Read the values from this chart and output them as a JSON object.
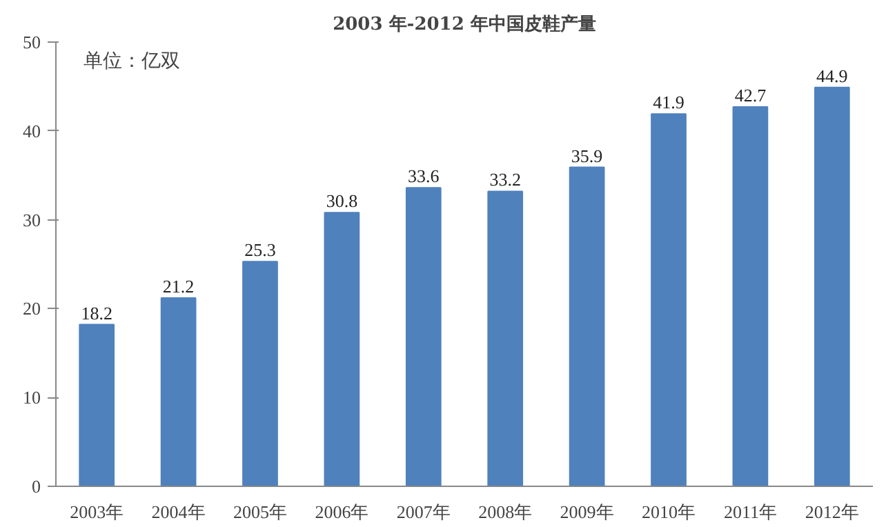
{
  "chart_data": {
    "type": "bar",
    "title": "2003 年-2012 年中国皮鞋产量",
    "categories": [
      "2003年",
      "2004年",
      "2005年",
      "2006年",
      "2007年",
      "2008年",
      "2009年",
      "2010年",
      "2011年",
      "2012年"
    ],
    "values": [
      18.2,
      21.2,
      25.3,
      30.8,
      33.6,
      33.2,
      35.9,
      41.9,
      42.7,
      44.9
    ],
    "color": "#4f81bd",
    "ylim": [
      0,
      50
    ],
    "yticks": [
      0,
      10,
      20,
      30,
      40,
      50
    ],
    "grid": false,
    "data_labels": true,
    "annotations": [
      "单位：亿双"
    ]
  }
}
